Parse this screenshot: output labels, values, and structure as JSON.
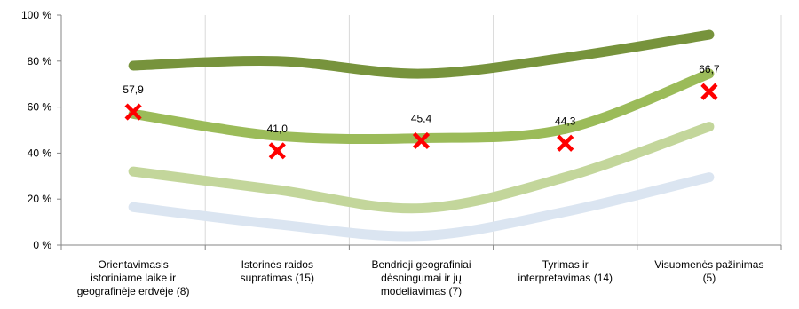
{
  "chart_data": {
    "type": "line",
    "title": "",
    "xlabel": "",
    "ylabel": "",
    "ylim": [
      0,
      100
    ],
    "y_ticks": [
      0,
      20,
      40,
      60,
      80,
      100
    ],
    "y_tick_suffix": " %",
    "grid": {
      "vertical": true,
      "horizontal": false
    },
    "legend": "none",
    "categories": [
      [
        "Orientavimasis",
        "istoriniame laike ir",
        "geografinėje erdvėje (8)"
      ],
      [
        "Istorinės raidos",
        "supratimas (15)"
      ],
      [
        "Bendrieji geografiniai",
        "dėsningumai ir jų",
        "modeliavimas (7)"
      ],
      [
        "Tyrimas ir",
        "interpretavimas (14)"
      ],
      [
        "Visuomenės pažinimas",
        "(5)"
      ]
    ],
    "series": [
      {
        "values": [
          78,
          80,
          74.5,
          81.5,
          91.5
        ],
        "color": "#77933c"
      },
      {
        "values": [
          57,
          47.5,
          46.5,
          50.5,
          74.5
        ],
        "color": "#9bbb59"
      },
      {
        "values": [
          32,
          24,
          16,
          29.5,
          51.5
        ],
        "color": "#c3d69b"
      },
      {
        "values": [
          16.5,
          9,
          4,
          14.5,
          29.5
        ],
        "color": "#dbe5f1"
      }
    ],
    "markers": {
      "color": "#ff0000",
      "symbol": "x",
      "values": [
        57.9,
        41.0,
        45.4,
        44.3,
        66.7
      ],
      "labels": [
        "57,9",
        "41,0",
        "45,4",
        "44,3",
        "66,7"
      ]
    }
  }
}
